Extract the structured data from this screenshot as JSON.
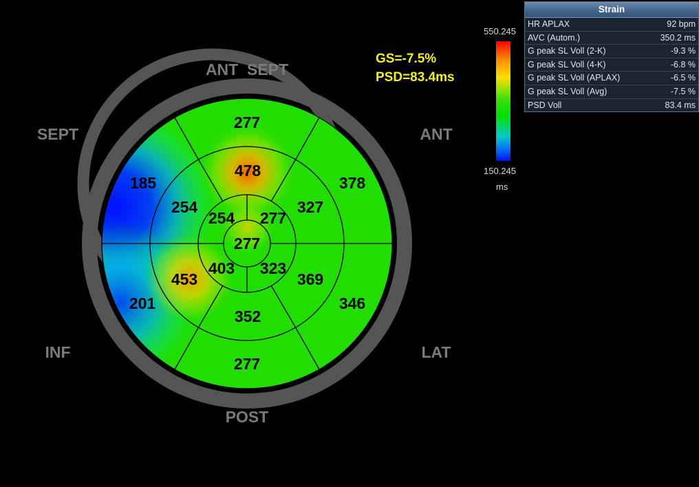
{
  "bullseye": {
    "wall_labels": {
      "ant_sept": "ANT  SEPT",
      "sept": "SEPT",
      "ant": "ANT",
      "inf": "INF",
      "lat": "LAT",
      "post": "POST"
    },
    "basal": [
      {
        "segment": "ant",
        "value": "277"
      },
      {
        "segment": "antlat",
        "value": "378"
      },
      {
        "segment": "inflat",
        "value": "346"
      },
      {
        "segment": "inf",
        "value": "277"
      },
      {
        "segment": "infsept",
        "value": "201"
      },
      {
        "segment": "antsept",
        "value": "185"
      }
    ],
    "mid": [
      {
        "segment": "ant",
        "value": "478"
      },
      {
        "segment": "antlat",
        "value": "327"
      },
      {
        "segment": "inflat",
        "value": "369"
      },
      {
        "segment": "inf",
        "value": "352"
      },
      {
        "segment": "infsept",
        "value": "453"
      },
      {
        "segment": "antsept",
        "value": "254"
      }
    ],
    "apical": [
      {
        "segment": "ant",
        "value": "277"
      },
      {
        "segment": "lat",
        "value": "323"
      },
      {
        "segment": "inf",
        "value": "403"
      },
      {
        "segment": "sept",
        "value": "254"
      }
    ],
    "apex": "277"
  },
  "global": {
    "gs": "GS=-7.5%",
    "psd": "PSD=83.4ms"
  },
  "scale": {
    "max": "550.245",
    "min": "150.245",
    "unit": "ms"
  },
  "strain_panel": {
    "title": "Strain",
    "rows": [
      {
        "label": "HR APLAX",
        "value": "92 bpm"
      },
      {
        "label": "AVC (Autom.)",
        "value": "350.2 ms"
      },
      {
        "label": "G peak SL Voll (2-K)",
        "value": "-9.3 %"
      },
      {
        "label": "G peak SL Voll (4-K)",
        "value": "-6.8 %"
      },
      {
        "label": "G peak SL Voll (APLAX)",
        "value": "-6.5 %"
      },
      {
        "label": "G peak SL Voll (Avg)",
        "value": "-7.5 %"
      },
      {
        "label": "PSD Voll",
        "value": "83.4 ms"
      }
    ]
  },
  "colors": {
    "background": "#000000",
    "ring": "#555555",
    "annotation": "#f2f21a",
    "wall_label": "#7a7a7a",
    "late_segment": "#ff6a00",
    "normal_segment": "#22dd00",
    "early_segment": "#0022ff"
  }
}
